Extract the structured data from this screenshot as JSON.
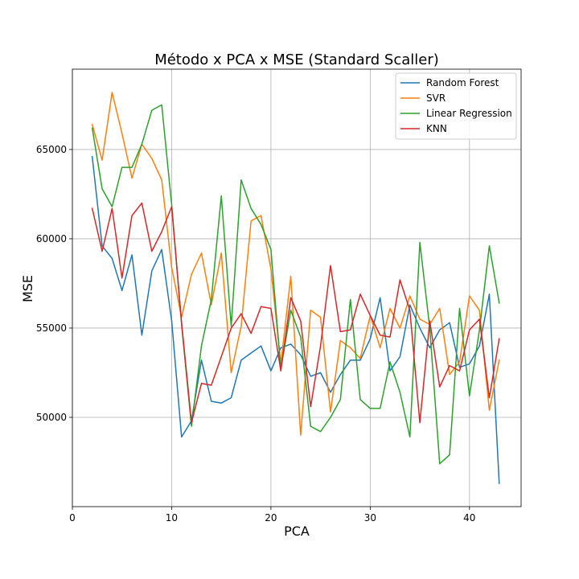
{
  "chart_data": {
    "type": "line",
    "title": "Método x PCA x MSE (Standard Scaller)",
    "xlabel": "PCA",
    "ylabel": "MSE",
    "xlim": [
      0,
      45.2
    ],
    "ylim": [
      45000,
      69500
    ],
    "xticks": [
      0,
      10,
      20,
      30,
      40
    ],
    "yticks": [
      50000,
      55000,
      60000,
      65000
    ],
    "grid": true,
    "legend_position": "top-right",
    "x": [
      2,
      3,
      4,
      5,
      6,
      7,
      8,
      9,
      10,
      11,
      12,
      13,
      14,
      15,
      16,
      17,
      18,
      19,
      20,
      21,
      22,
      23,
      24,
      25,
      26,
      27,
      28,
      29,
      30,
      31,
      32,
      33,
      34,
      35,
      36,
      37,
      38,
      39,
      40,
      41,
      42,
      43
    ],
    "series": [
      {
        "name": "Random Forest",
        "color": "#1f77b4",
        "values": [
          64600,
          59600,
          58900,
          57100,
          59100,
          54600,
          58200,
          59400,
          55400,
          48900,
          49800,
          53200,
          50900,
          50800,
          51100,
          53200,
          53600,
          54000,
          52600,
          53900,
          54100,
          53500,
          52300,
          52500,
          51400,
          52400,
          53200,
          53200,
          54400,
          56700,
          52600,
          53400,
          56300,
          55000,
          53900,
          54900,
          55300,
          52800,
          53000,
          54000,
          56900,
          46300
        ]
      },
      {
        "name": "SVR",
        "color": "#ff7f0e",
        "values": [
          66400,
          64400,
          68200,
          65900,
          63400,
          65300,
          64500,
          63300,
          58400,
          55600,
          58000,
          59200,
          56300,
          59200,
          52500,
          55100,
          61000,
          61300,
          58300,
          53000,
          57900,
          49000,
          56000,
          55600,
          50300,
          54300,
          53900,
          53300,
          55700,
          53900,
          56100,
          55000,
          56800,
          55500,
          55200,
          56100,
          52400,
          53100,
          56800,
          56000,
          50400,
          53200
        ]
      },
      {
        "name": "Linear Regression",
        "color": "#2ca02c",
        "values": [
          66200,
          62800,
          61800,
          64000,
          64000,
          65300,
          67200,
          67500,
          61900,
          55200,
          49500,
          54000,
          56600,
          62400,
          55100,
          63300,
          61700,
          60800,
          59400,
          52700,
          56000,
          54500,
          49500,
          49200,
          50000,
          51000,
          56600,
          51000,
          50500,
          50500,
          53100,
          51400,
          48900,
          59800,
          55000,
          47400,
          47900,
          56100,
          51200,
          54900,
          59600,
          56400
        ]
      },
      {
        "name": "KNN",
        "color": "#d62728",
        "values": [
          61700,
          59300,
          61700,
          57800,
          61300,
          62000,
          59300,
          60400,
          61800,
          55300,
          49700,
          51900,
          51800,
          53400,
          55000,
          55800,
          54700,
          56200,
          56100,
          52600,
          56700,
          55400,
          50600,
          54000,
          58500,
          54800,
          54900,
          56900,
          55700,
          54600,
          54500,
          57700,
          56000,
          49700,
          55400,
          51700,
          52900,
          52600,
          54900,
          55500,
          51100,
          54400
        ]
      }
    ]
  }
}
